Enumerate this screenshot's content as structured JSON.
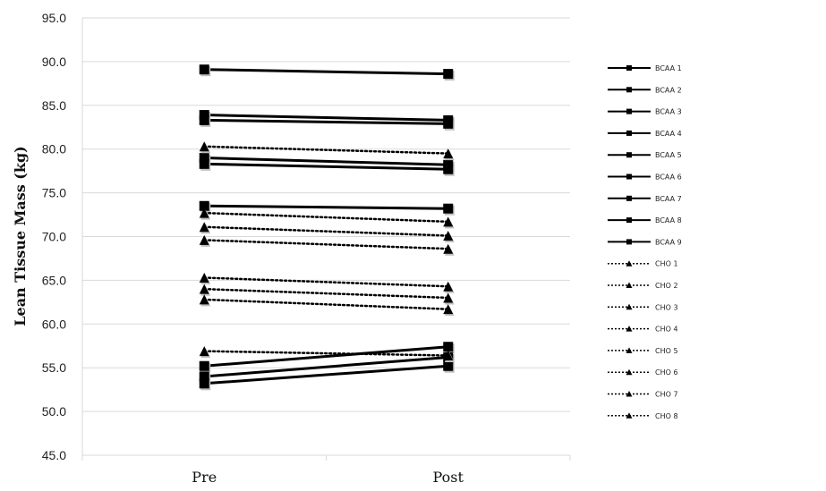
{
  "chart_data": {
    "type": "line",
    "title": "",
    "xlabel": "",
    "ylabel": "Lean Tissue Mass (kg)",
    "categories": [
      "Pre",
      "Post"
    ],
    "ylim": [
      45.0,
      95.0
    ],
    "yticks": [
      "45.0",
      "50.0",
      "55.0",
      "60.0",
      "65.0",
      "70.0",
      "75.0",
      "80.0",
      "85.0",
      "90.0",
      "95.0"
    ],
    "grid": "horizontal",
    "legend_position": "right",
    "series": [
      {
        "name": "BCAA 1",
        "group": "BCAA",
        "values": [
          89.1,
          88.6
        ]
      },
      {
        "name": "BCAA 2",
        "group": "BCAA",
        "values": [
          83.9,
          83.3
        ]
      },
      {
        "name": "BCAA 3",
        "group": "BCAA",
        "values": [
          83.3,
          82.9
        ]
      },
      {
        "name": "BCAA 4",
        "group": "BCAA",
        "values": [
          79.0,
          78.2
        ]
      },
      {
        "name": "BCAA 5",
        "group": "BCAA",
        "values": [
          78.3,
          77.7
        ]
      },
      {
        "name": "BCAA 6",
        "group": "BCAA",
        "values": [
          73.5,
          73.2
        ]
      },
      {
        "name": "BCAA 7",
        "group": "BCAA",
        "values": [
          55.2,
          57.4
        ]
      },
      {
        "name": "BCAA 8",
        "group": "BCAA",
        "values": [
          54.0,
          56.2
        ]
      },
      {
        "name": "BCAA 9",
        "group": "BCAA",
        "values": [
          53.2,
          55.2
        ]
      },
      {
        "name": "CHO 1",
        "group": "CHO",
        "values": [
          80.3,
          79.5
        ]
      },
      {
        "name": "CHO 2",
        "group": "CHO",
        "values": [
          72.7,
          71.7
        ]
      },
      {
        "name": "CHO 3",
        "group": "CHO",
        "values": [
          71.1,
          70.1
        ]
      },
      {
        "name": "CHO 4",
        "group": "CHO",
        "values": [
          69.6,
          68.6
        ]
      },
      {
        "name": "CHO 5",
        "group": "CHO",
        "values": [
          65.3,
          64.3
        ]
      },
      {
        "name": "CHO 6",
        "group": "CHO",
        "values": [
          64.0,
          63.0
        ]
      },
      {
        "name": "CHO 7",
        "group": "CHO",
        "values": [
          62.8,
          61.7
        ]
      },
      {
        "name": "CHO 8",
        "group": "CHO",
        "values": [
          56.9,
          56.4
        ]
      }
    ],
    "colors": {
      "line": "#000000",
      "grid": "#d9d9d9",
      "marker_shadow": "#bfbfbf"
    }
  }
}
